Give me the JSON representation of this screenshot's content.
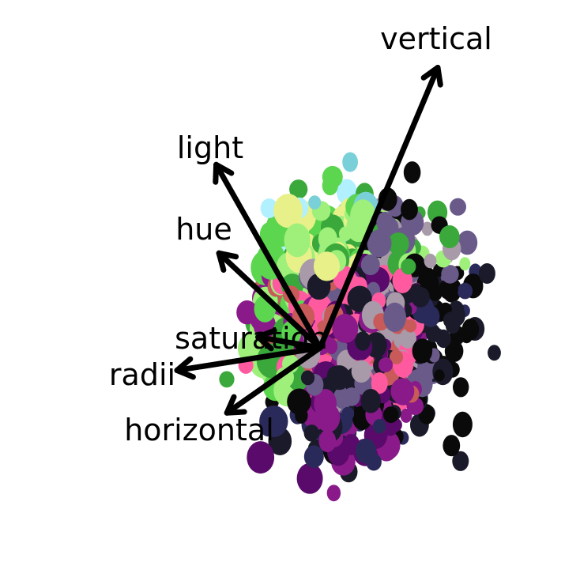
{
  "chart_data": {
    "type": "scatter",
    "title": "",
    "xlabel": "",
    "ylabel": "",
    "grid": false,
    "legend": "none",
    "axes_visible": false,
    "xlim": [
      -1,
      1
    ],
    "ylim": [
      -1,
      1
    ],
    "origin": [
      0,
      0
    ],
    "points_description_colors": [
      "#9ef07a",
      "#e8f08a",
      "#5cd64e",
      "#8a1a8a",
      "#5a0a6a",
      "#1a1a2a",
      "#0a0a0a",
      "#6a5a8a",
      "#a89aa8",
      "#3aa83a",
      "#c85a5a",
      "#7ad0d8",
      "#b0f0ff",
      "#2a2a5a",
      "#ff5aa0"
    ],
    "loadings": [
      {
        "label": "vertical",
        "x": 0.382,
        "y": 0.909
      },
      {
        "label": "light",
        "x": -0.337,
        "y": 0.594
      },
      {
        "label": "hue",
        "x": -0.328,
        "y": 0.307
      },
      {
        "label": "saturation",
        "x": -0.201,
        "y": 0.035
      },
      {
        "label": "radii",
        "x": -0.464,
        "y": -0.073
      },
      {
        "label": "horizontal",
        "x": -0.302,
        "y": -0.211
      }
    ],
    "arrow_color": "#000000"
  }
}
